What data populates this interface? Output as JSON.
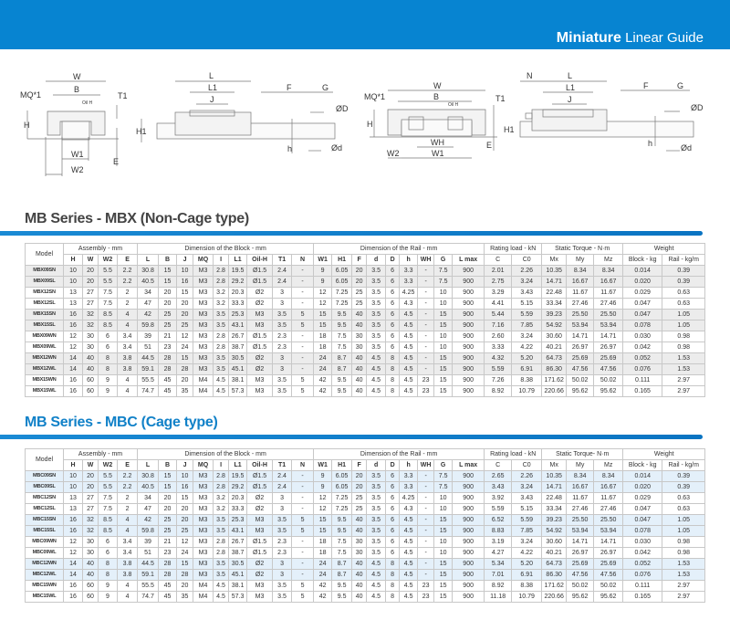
{
  "banner": {
    "title_bold": "Miniature",
    "title_rest": "Linear Guide"
  },
  "diagram_labels": {
    "front1": {
      "W": "W",
      "B": "B",
      "MQ": "MQ*1",
      "T1": "T1",
      "OilH": "Oil H",
      "H": "H",
      "W1": "W1",
      "W2": "W2",
      "E": "E"
    },
    "side1": {
      "L": "L",
      "L1": "L1",
      "J": "J",
      "H1": "H1",
      "F": "F",
      "G": "G",
      "D": "ØD",
      "h": "h",
      "d": "Ød"
    },
    "front2": {
      "W": "W",
      "B": "B",
      "MQ": "MQ*1",
      "T1": "T1",
      "OilH": "Oil H",
      "H": "H",
      "WH": "WH",
      "W1": "W1",
      "W2": "W2",
      "E": "E"
    },
    "side2": {
      "N": "N",
      "L": "L",
      "L1": "L1",
      "J": "J",
      "H1": "H1",
      "F": "F",
      "G": "G",
      "D": "ØD",
      "h": "h",
      "d": "Ød"
    }
  },
  "headers": {
    "model": "Model",
    "groups": [
      "Assembly - mm",
      "Dimension of the Block - mm",
      "Dimension of  the Rail - mm",
      "Rating load - kN",
      "Static Torque - N·m",
      "Weight"
    ],
    "groups_t2": [
      "Assembly - mm",
      "Dimension of the Block - mm",
      "Dimension of  the Rail - mm",
      "Rating load - kN",
      "Static Torque- N·m",
      "Weight"
    ],
    "columns": [
      "H",
      "W",
      "W2",
      "E",
      "L",
      "B",
      "J",
      "MQ",
      "I",
      "L1",
      "Oil-H",
      "T1",
      "N",
      "W1",
      "H1",
      "F",
      "d",
      "D",
      "h",
      "WH",
      "G",
      "L max",
      "C",
      "C0",
      "Mx",
      "My",
      "Mz",
      "Block - kg",
      "Rail - kg/m"
    ]
  },
  "table1": {
    "title": "MB Series - MBX (Non-Cage type)",
    "rows": [
      [
        "MBX09SN",
        "10",
        "20",
        "5.5",
        "2.2",
        "30.8",
        "15",
        "10",
        "M3",
        "2.8",
        "19.5",
        "Ø1.5",
        "2.4",
        "-",
        "9",
        "6.05",
        "20",
        "3.5",
        "6",
        "3.3",
        "-",
        "7.5",
        "900",
        "2.01",
        "2.26",
        "10.35",
        "8.34",
        "8.34",
        "0.014",
        "0.39"
      ],
      [
        "MBX09SL",
        "10",
        "20",
        "5.5",
        "2.2",
        "40.5",
        "15",
        "16",
        "M3",
        "2.8",
        "29.2",
        "Ø1.5",
        "2.4",
        "-",
        "9",
        "6.05",
        "20",
        "3.5",
        "6",
        "3.3",
        "-",
        "7.5",
        "900",
        "2.75",
        "3.24",
        "14.71",
        "16.67",
        "16.67",
        "0.020",
        "0.39"
      ],
      [
        "MBX12SN",
        "13",
        "27",
        "7.5",
        "2",
        "34",
        "20",
        "15",
        "M3",
        "3.2",
        "20.3",
        "Ø2",
        "3",
        "-",
        "12",
        "7.25",
        "25",
        "3.5",
        "6",
        "4.25",
        "-",
        "10",
        "900",
        "3.29",
        "3.43",
        "22.48",
        "11.67",
        "11.67",
        "0.029",
        "0.63"
      ],
      [
        "MBX12SL",
        "13",
        "27",
        "7.5",
        "2",
        "47",
        "20",
        "20",
        "M3",
        "3.2",
        "33.3",
        "Ø2",
        "3",
        "-",
        "12",
        "7.25",
        "25",
        "3.5",
        "6",
        "4.3",
        "-",
        "10",
        "900",
        "4.41",
        "5.15",
        "33.34",
        "27.46",
        "27.46",
        "0.047",
        "0.63"
      ],
      [
        "MBX15SN",
        "16",
        "32",
        "8.5",
        "4",
        "42",
        "25",
        "20",
        "M3",
        "3.5",
        "25.3",
        "M3",
        "3.5",
        "5",
        "15",
        "9.5",
        "40",
        "3.5",
        "6",
        "4.5",
        "-",
        "15",
        "900",
        "5.44",
        "5.59",
        "39.23",
        "25.50",
        "25.50",
        "0.047",
        "1.05"
      ],
      [
        "MBX15SL",
        "16",
        "32",
        "8.5",
        "4",
        "59.8",
        "25",
        "25",
        "M3",
        "3.5",
        "43.1",
        "M3",
        "3.5",
        "5",
        "15",
        "9.5",
        "40",
        "3.5",
        "6",
        "4.5",
        "-",
        "15",
        "900",
        "7.16",
        "7.85",
        "54.92",
        "53.94",
        "53.94",
        "0.078",
        "1.05"
      ],
      [
        "MBX09WN",
        "12",
        "30",
        "6",
        "3.4",
        "39",
        "21",
        "12",
        "M3",
        "2.8",
        "26.7",
        "Ø1.5",
        "2.3",
        "-",
        "18",
        "7.5",
        "30",
        "3.5",
        "6",
        "4.5",
        "-",
        "10",
        "900",
        "2.60",
        "3.24",
        "30.60",
        "14.71",
        "14.71",
        "0.030",
        "0.98"
      ],
      [
        "MBX09WL",
        "12",
        "30",
        "6",
        "3.4",
        "51",
        "23",
        "24",
        "M3",
        "2.8",
        "38.7",
        "Ø1.5",
        "2.3",
        "-",
        "18",
        "7.5",
        "30",
        "3.5",
        "6",
        "4.5",
        "-",
        "10",
        "900",
        "3.33",
        "4.22",
        "40.21",
        "26.97",
        "26.97",
        "0.042",
        "0.98"
      ],
      [
        "MBX12WN",
        "14",
        "40",
        "8",
        "3.8",
        "44.5",
        "28",
        "15",
        "M3",
        "3.5",
        "30.5",
        "Ø2",
        "3",
        "-",
        "24",
        "8.7",
        "40",
        "4.5",
        "8",
        "4.5",
        "-",
        "15",
        "900",
        "4.32",
        "5.20",
        "64.73",
        "25.69",
        "25.69",
        "0.052",
        "1.53"
      ],
      [
        "MBX12WL",
        "14",
        "40",
        "8",
        "3.8",
        "59.1",
        "28",
        "28",
        "M3",
        "3.5",
        "45.1",
        "Ø2",
        "3",
        "-",
        "24",
        "8.7",
        "40",
        "4.5",
        "8",
        "4.5",
        "-",
        "15",
        "900",
        "5.59",
        "6.91",
        "86.30",
        "47.56",
        "47.56",
        "0.076",
        "1.53"
      ],
      [
        "MBX15WN",
        "16",
        "60",
        "9",
        "4",
        "55.5",
        "45",
        "20",
        "M4",
        "4.5",
        "38.1",
        "M3",
        "3.5",
        "5",
        "42",
        "9.5",
        "40",
        "4.5",
        "8",
        "4.5",
        "23",
        "15",
        "900",
        "7.26",
        "8.38",
        "171.62",
        "50.02",
        "50.02",
        "0.111",
        "2.97"
      ],
      [
        "MBX15WL",
        "16",
        "60",
        "9",
        "4",
        "74.7",
        "45",
        "35",
        "M4",
        "4.5",
        "57.3",
        "M3",
        "3.5",
        "5",
        "42",
        "9.5",
        "40",
        "4.5",
        "8",
        "4.5",
        "23",
        "15",
        "900",
        "8.92",
        "10.79",
        "220.66",
        "95.62",
        "95.62",
        "0.165",
        "2.97"
      ]
    ]
  },
  "table2": {
    "title": "MB Series - MBC (Cage type)",
    "rows": [
      [
        "MBC09SN",
        "10",
        "20",
        "5.5",
        "2.2",
        "30.8",
        "15",
        "10",
        "M3",
        "2.8",
        "19.5",
        "Ø1.5",
        "2.4",
        "-",
        "9",
        "6.05",
        "20",
        "3.5",
        "6",
        "3.3",
        "-",
        "7.5",
        "900",
        "2.65",
        "2.26",
        "10.35",
        "8.34",
        "8.34",
        "0.014",
        "0.39"
      ],
      [
        "MBC09SL",
        "10",
        "20",
        "5.5",
        "2.2",
        "40.5",
        "15",
        "16",
        "M3",
        "2.8",
        "29.2",
        "Ø1.5",
        "2.4",
        "-",
        "9",
        "6.05",
        "20",
        "3.5",
        "6",
        "3.3",
        "-",
        "7.5",
        "900",
        "3.43",
        "3.24",
        "14.71",
        "16.67",
        "16.67",
        "0.020",
        "0.39"
      ],
      [
        "MBC12SN",
        "13",
        "27",
        "7.5",
        "2",
        "34",
        "20",
        "15",
        "M3",
        "3.2",
        "20.3",
        "Ø2",
        "3",
        "-",
        "12",
        "7.25",
        "25",
        "3.5",
        "6",
        "4.25",
        "-",
        "10",
        "900",
        "3.92",
        "3.43",
        "22.48",
        "11.67",
        "11.67",
        "0.029",
        "0.63"
      ],
      [
        "MBC12SL",
        "13",
        "27",
        "7.5",
        "2",
        "47",
        "20",
        "20",
        "M3",
        "3.2",
        "33.3",
        "Ø2",
        "3",
        "-",
        "12",
        "7.25",
        "25",
        "3.5",
        "6",
        "4.3",
        "-",
        "10",
        "900",
        "5.59",
        "5.15",
        "33.34",
        "27.46",
        "27.46",
        "0.047",
        "0.63"
      ],
      [
        "MBC15SN",
        "16",
        "32",
        "8.5",
        "4",
        "42",
        "25",
        "20",
        "M3",
        "3.5",
        "25.3",
        "M3",
        "3.5",
        "5",
        "15",
        "9.5",
        "40",
        "3.5",
        "6",
        "4.5",
        "-",
        "15",
        "900",
        "6.52",
        "5.59",
        "39.23",
        "25.50",
        "25.50",
        "0.047",
        "1.05"
      ],
      [
        "MBC15SL",
        "16",
        "32",
        "8.5",
        "4",
        "59.8",
        "25",
        "25",
        "M3",
        "3.5",
        "43.1",
        "M3",
        "3.5",
        "5",
        "15",
        "9.5",
        "40",
        "3.5",
        "6",
        "4.5",
        "-",
        "15",
        "900",
        "8.83",
        "7.85",
        "54.92",
        "53.94",
        "53.94",
        "0.078",
        "1.05"
      ],
      [
        "MBC09WN",
        "12",
        "30",
        "6",
        "3.4",
        "39",
        "21",
        "12",
        "M3",
        "2.8",
        "26.7",
        "Ø1.5",
        "2.3",
        "-",
        "18",
        "7.5",
        "30",
        "3.5",
        "6",
        "4.5",
        "-",
        "10",
        "900",
        "3.19",
        "3.24",
        "30.60",
        "14.71",
        "14.71",
        "0.030",
        "0.98"
      ],
      [
        "MBC09WL",
        "12",
        "30",
        "6",
        "3.4",
        "51",
        "23",
        "24",
        "M3",
        "2.8",
        "38.7",
        "Ø1.5",
        "2.3",
        "-",
        "18",
        "7.5",
        "30",
        "3.5",
        "6",
        "4.5",
        "-",
        "10",
        "900",
        "4.27",
        "4.22",
        "40.21",
        "26.97",
        "26.97",
        "0.042",
        "0.98"
      ],
      [
        "MBC12WN",
        "14",
        "40",
        "8",
        "3.8",
        "44.5",
        "28",
        "15",
        "M3",
        "3.5",
        "30.5",
        "Ø2",
        "3",
        "-",
        "24",
        "8.7",
        "40",
        "4.5",
        "8",
        "4.5",
        "-",
        "15",
        "900",
        "5.34",
        "5.20",
        "64.73",
        "25.69",
        "25.69",
        "0.052",
        "1.53"
      ],
      [
        "MBC12WL",
        "14",
        "40",
        "8",
        "3.8",
        "59.1",
        "28",
        "28",
        "M3",
        "3.5",
        "45.1",
        "Ø2",
        "3",
        "-",
        "24",
        "8.7",
        "40",
        "4.5",
        "8",
        "4.5",
        "-",
        "15",
        "900",
        "7.01",
        "6.91",
        "86.30",
        "47.56",
        "47.56",
        "0.076",
        "1.53"
      ],
      [
        "MBC15WN",
        "16",
        "60",
        "9",
        "4",
        "55.5",
        "45",
        "20",
        "M4",
        "4.5",
        "38.1",
        "M3",
        "3.5",
        "5",
        "42",
        "9.5",
        "40",
        "4.5",
        "8",
        "4.5",
        "23",
        "15",
        "900",
        "8.92",
        "8.38",
        "171.62",
        "50.02",
        "50.02",
        "0.111",
        "2.97"
      ],
      [
        "MBC15WL",
        "16",
        "60",
        "9",
        "4",
        "74.7",
        "45",
        "35",
        "M4",
        "4.5",
        "57.3",
        "M3",
        "3.5",
        "5",
        "42",
        "9.5",
        "40",
        "4.5",
        "8",
        "4.5",
        "23",
        "15",
        "900",
        "11.18",
        "10.79",
        "220.66",
        "95.62",
        "95.62",
        "0.165",
        "2.97"
      ]
    ]
  }
}
